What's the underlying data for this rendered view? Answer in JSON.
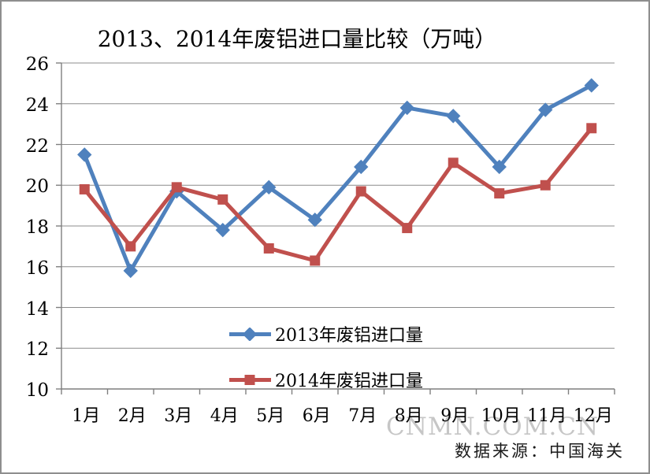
{
  "chart": {
    "title": "2013、2014年废铝进口量比较（万吨）",
    "watermark": "CNMN.COM.CN",
    "source": "数据来源：中国海关"
  },
  "chart_data": {
    "type": "line",
    "title": "2013、2014年废铝进口量比较（万吨）",
    "categories": [
      "1月",
      "2月",
      "3月",
      "4月",
      "5月",
      "6月",
      "7月",
      "8月",
      "9月",
      "10月",
      "11月",
      "12月"
    ],
    "series": [
      {
        "name": "2013年废铝进口量",
        "marker": "diamond",
        "color": "#4F81BD",
        "values": [
          21.5,
          15.8,
          19.7,
          17.8,
          19.9,
          18.3,
          20.9,
          23.8,
          23.4,
          20.9,
          23.7,
          24.9
        ]
      },
      {
        "name": "2014年废铝进口量",
        "marker": "square",
        "color": "#C0504D",
        "values": [
          19.8,
          17.0,
          19.9,
          19.3,
          16.9,
          16.3,
          19.7,
          17.9,
          21.1,
          19.6,
          20.0,
          22.8
        ]
      }
    ],
    "xlabel": "",
    "ylabel": "",
    "ylim": [
      10,
      26
    ],
    "y_ticks": [
      10,
      12,
      14,
      16,
      18,
      20,
      22,
      24,
      26
    ],
    "grid": "horizontal",
    "legend_position": "inside-bottom-center",
    "gridline_color": "#8C8C8C",
    "axis_color": "#7F7F7F",
    "background_color": "#FFFFFF"
  }
}
